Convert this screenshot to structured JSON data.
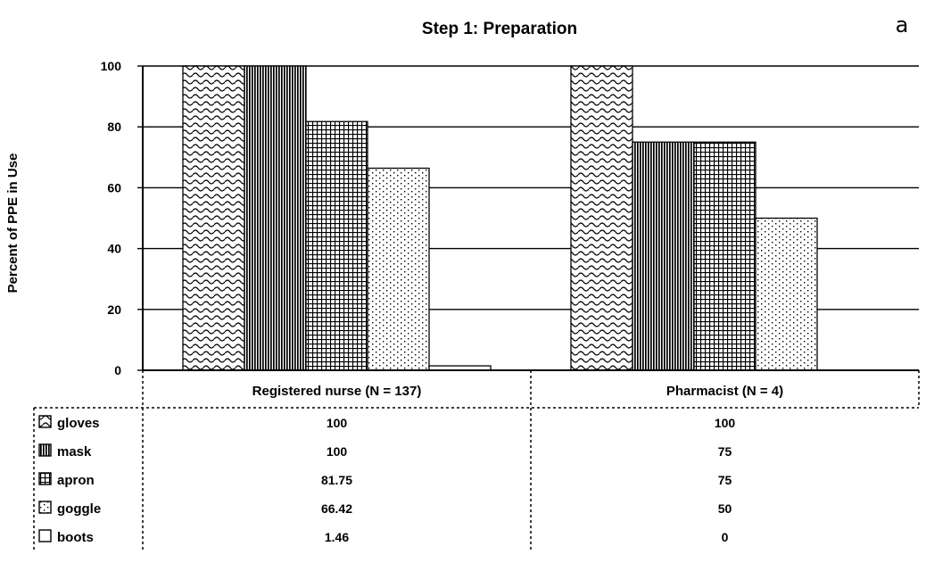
{
  "panel_label": "a",
  "chart_data": {
    "type": "bar",
    "title": "Step 1: Preparation",
    "xlabel": "",
    "ylabel": "Percent of PPE in Use",
    "ylim": [
      0,
      100
    ],
    "yticks": [
      "0",
      "20",
      "40",
      "60",
      "80",
      "100"
    ],
    "grid": true,
    "legend_placement": "data-table-left",
    "categories": [
      "Registered nurse  (N = 137)",
      "Pharmacist (N = 4)"
    ],
    "series": [
      {
        "name": "gloves",
        "values": [
          100,
          100
        ],
        "display": [
          "100",
          "100"
        ],
        "pattern": "wave"
      },
      {
        "name": "mask",
        "values": [
          100,
          75
        ],
        "display": [
          "100",
          "75"
        ],
        "pattern": "vlines"
      },
      {
        "name": "apron",
        "values": [
          81.75,
          75
        ],
        "display": [
          "81.75",
          "75"
        ],
        "pattern": "grid"
      },
      {
        "name": "goggle",
        "values": [
          66.42,
          50
        ],
        "display": [
          "66.42",
          "50"
        ],
        "pattern": "dots"
      },
      {
        "name": "boots",
        "values": [
          1.46,
          0
        ],
        "display": [
          "1.46",
          "0"
        ],
        "pattern": "plain"
      }
    ]
  }
}
